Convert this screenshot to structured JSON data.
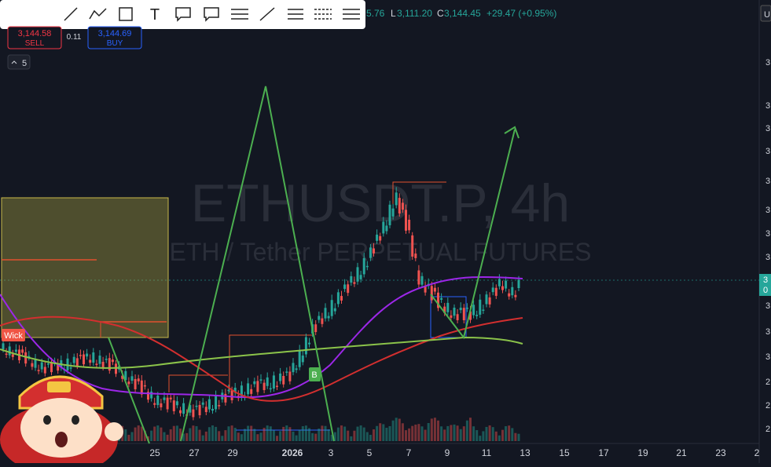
{
  "toolbar": {
    "text_tool": "T"
  },
  "legend": {
    "high": "5.76",
    "low_label": "L",
    "low": "3,111.20",
    "close_label": "C",
    "close": "3,144.45",
    "change": "+29.47 (+0.95%)"
  },
  "order": {
    "sell_price": "3,144.58",
    "sell": "SELL",
    "spread": "0.11",
    "buy_price": "3,144.69",
    "buy": "BUY"
  },
  "interval": "5",
  "watermark": {
    "symbol": "ETHUSDT.P, 4h",
    "description": "ETH / Tether PERPETUAL FUTURES"
  },
  "labels": {
    "wick": "Wick",
    "buy_signal": "B"
  },
  "x_axis": [
    "25",
    "27",
    "29",
    "2026",
    "3",
    "5",
    "7",
    "9",
    "11",
    "13",
    "15",
    "17",
    "19",
    "21",
    "23",
    "2"
  ],
  "y_axis": [
    "3",
    "3",
    "3",
    "3",
    "3",
    "3",
    "3",
    "3",
    "3",
    "3",
    "3",
    "2",
    "2",
    "2"
  ],
  "price_tag": [
    "3",
    "0"
  ],
  "corner": "U"
}
